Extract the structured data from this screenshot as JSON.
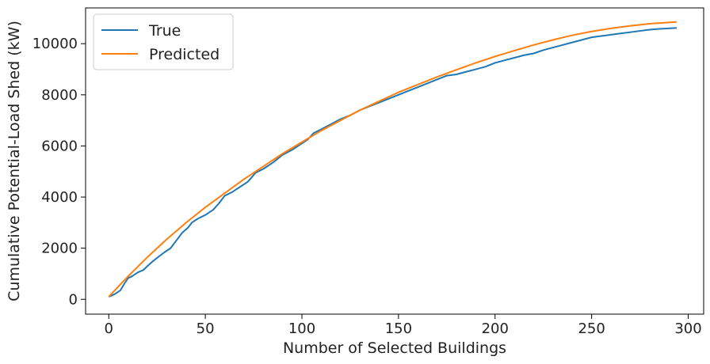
{
  "chart_data": {
    "type": "line",
    "title": "",
    "xlabel": "Number of Selected Buildings",
    "ylabel": "Cumulative Potential-Load Shed (kW)",
    "xlim": [
      -12,
      308
    ],
    "ylim": [
      -580,
      11400
    ],
    "xticks": [
      0,
      50,
      100,
      150,
      200,
      250,
      300
    ],
    "yticks": [
      0,
      2000,
      4000,
      6000,
      8000,
      10000
    ],
    "grid": false,
    "legend_position": "top-left",
    "series": [
      {
        "name": "True",
        "color": "#1f77b4",
        "points": [
          [
            0,
            100
          ],
          [
            3,
            200
          ],
          [
            6,
            350
          ],
          [
            8,
            600
          ],
          [
            10,
            830
          ],
          [
            12,
            900
          ],
          [
            15,
            1050
          ],
          [
            18,
            1150
          ],
          [
            20,
            1300
          ],
          [
            23,
            1500
          ],
          [
            26,
            1680
          ],
          [
            29,
            1850
          ],
          [
            32,
            2000
          ],
          [
            35,
            2300
          ],
          [
            38,
            2600
          ],
          [
            41,
            2800
          ],
          [
            43,
            3000
          ],
          [
            46,
            3150
          ],
          [
            50,
            3300
          ],
          [
            54,
            3500
          ],
          [
            57,
            3750
          ],
          [
            60,
            4050
          ],
          [
            64,
            4200
          ],
          [
            68,
            4400
          ],
          [
            72,
            4600
          ],
          [
            76,
            4950
          ],
          [
            80,
            5100
          ],
          [
            85,
            5350
          ],
          [
            90,
            5650
          ],
          [
            95,
            5850
          ],
          [
            100,
            6100
          ],
          [
            103,
            6250
          ],
          [
            106,
            6500
          ],
          [
            110,
            6650
          ],
          [
            115,
            6850
          ],
          [
            120,
            7050
          ],
          [
            125,
            7200
          ],
          [
            130,
            7400
          ],
          [
            135,
            7550
          ],
          [
            140,
            7700
          ],
          [
            145,
            7850
          ],
          [
            150,
            8000
          ],
          [
            155,
            8150
          ],
          [
            160,
            8300
          ],
          [
            165,
            8450
          ],
          [
            170,
            8600
          ],
          [
            175,
            8750
          ],
          [
            180,
            8800
          ],
          [
            185,
            8900
          ],
          [
            190,
            9000
          ],
          [
            195,
            9100
          ],
          [
            200,
            9250
          ],
          [
            205,
            9350
          ],
          [
            210,
            9450
          ],
          [
            215,
            9550
          ],
          [
            220,
            9620
          ],
          [
            225,
            9750
          ],
          [
            230,
            9850
          ],
          [
            235,
            9950
          ],
          [
            240,
            10050
          ],
          [
            245,
            10150
          ],
          [
            250,
            10250
          ],
          [
            255,
            10300
          ],
          [
            260,
            10350
          ],
          [
            265,
            10400
          ],
          [
            270,
            10450
          ],
          [
            275,
            10500
          ],
          [
            280,
            10550
          ],
          [
            285,
            10580
          ],
          [
            290,
            10600
          ],
          [
            294,
            10620
          ]
        ]
      },
      {
        "name": "Predicted",
        "color": "#ff7f0e",
        "points": [
          [
            0,
            100
          ],
          [
            5,
            500
          ],
          [
            10,
            900
          ],
          [
            20,
            1650
          ],
          [
            30,
            2350
          ],
          [
            40,
            3000
          ],
          [
            50,
            3600
          ],
          [
            60,
            4150
          ],
          [
            70,
            4700
          ],
          [
            80,
            5200
          ],
          [
            90,
            5700
          ],
          [
            100,
            6150
          ],
          [
            110,
            6600
          ],
          [
            120,
            7000
          ],
          [
            130,
            7400
          ],
          [
            140,
            7750
          ],
          [
            150,
            8100
          ],
          [
            160,
            8400
          ],
          [
            170,
            8700
          ],
          [
            180,
            8980
          ],
          [
            190,
            9250
          ],
          [
            200,
            9500
          ],
          [
            210,
            9730
          ],
          [
            220,
            9950
          ],
          [
            230,
            10150
          ],
          [
            240,
            10330
          ],
          [
            250,
            10480
          ],
          [
            260,
            10600
          ],
          [
            270,
            10700
          ],
          [
            280,
            10780
          ],
          [
            290,
            10830
          ],
          [
            294,
            10850
          ]
        ]
      }
    ]
  }
}
